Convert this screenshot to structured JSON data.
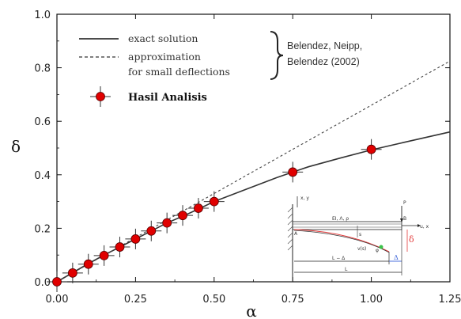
{
  "chart_data": {
    "type": "scatter",
    "xlabel": "α",
    "ylabel": "δ",
    "xlim": [
      0,
      1.25
    ],
    "ylim": [
      0,
      1.0
    ],
    "x_ticks": [
      "0.00",
      "0.25",
      "0.50",
      "0.75",
      "1.00",
      "1.25"
    ],
    "y_ticks": [
      "0.0",
      "0.2",
      "0.4",
      "0.6",
      "0.8",
      "1.0"
    ],
    "legend": {
      "exact_label": "exact solution",
      "approx_label_1": "approximation",
      "approx_label_2": "for small deflections",
      "reference": [
        "Belendez, Neipp,",
        "Belendez (2002)"
      ],
      "points_label": "Hasil Analisis"
    },
    "series": [
      {
        "name": "exact solution",
        "style": "solid",
        "x": [
          0,
          0.05,
          0.1,
          0.15,
          0.2,
          0.25,
          0.3,
          0.35,
          0.4,
          0.45,
          0.5,
          0.6,
          0.7,
          0.75,
          0.8,
          0.9,
          1.0,
          1.1,
          1.25
        ],
        "y": [
          0,
          0.034,
          0.068,
          0.1,
          0.13,
          0.16,
          0.19,
          0.22,
          0.245,
          0.272,
          0.3,
          0.345,
          0.39,
          0.41,
          0.43,
          0.462,
          0.493,
          0.52,
          0.56
        ]
      },
      {
        "name": "approximation for small deflections",
        "style": "dashed",
        "x": [
          0,
          1.25
        ],
        "y": [
          0,
          0.825
        ]
      },
      {
        "name": "Hasil Analisis",
        "style": "markers",
        "color": "#e00000",
        "x": [
          0,
          0.05,
          0.1,
          0.15,
          0.2,
          0.25,
          0.3,
          0.35,
          0.4,
          0.45,
          0.5,
          0.75,
          1.0
        ],
        "y": [
          0,
          0.033,
          0.066,
          0.098,
          0.13,
          0.16,
          0.19,
          0.22,
          0.248,
          0.275,
          0.3,
          0.41,
          0.495
        ]
      }
    ],
    "inset": {
      "labels": [
        "x, y",
        "P",
        "B",
        "u, x",
        "EI, Λ, ρ",
        "A",
        "s",
        "v(s)",
        "δ",
        "φ",
        "L − Δ",
        "Δ",
        "L"
      ]
    }
  }
}
